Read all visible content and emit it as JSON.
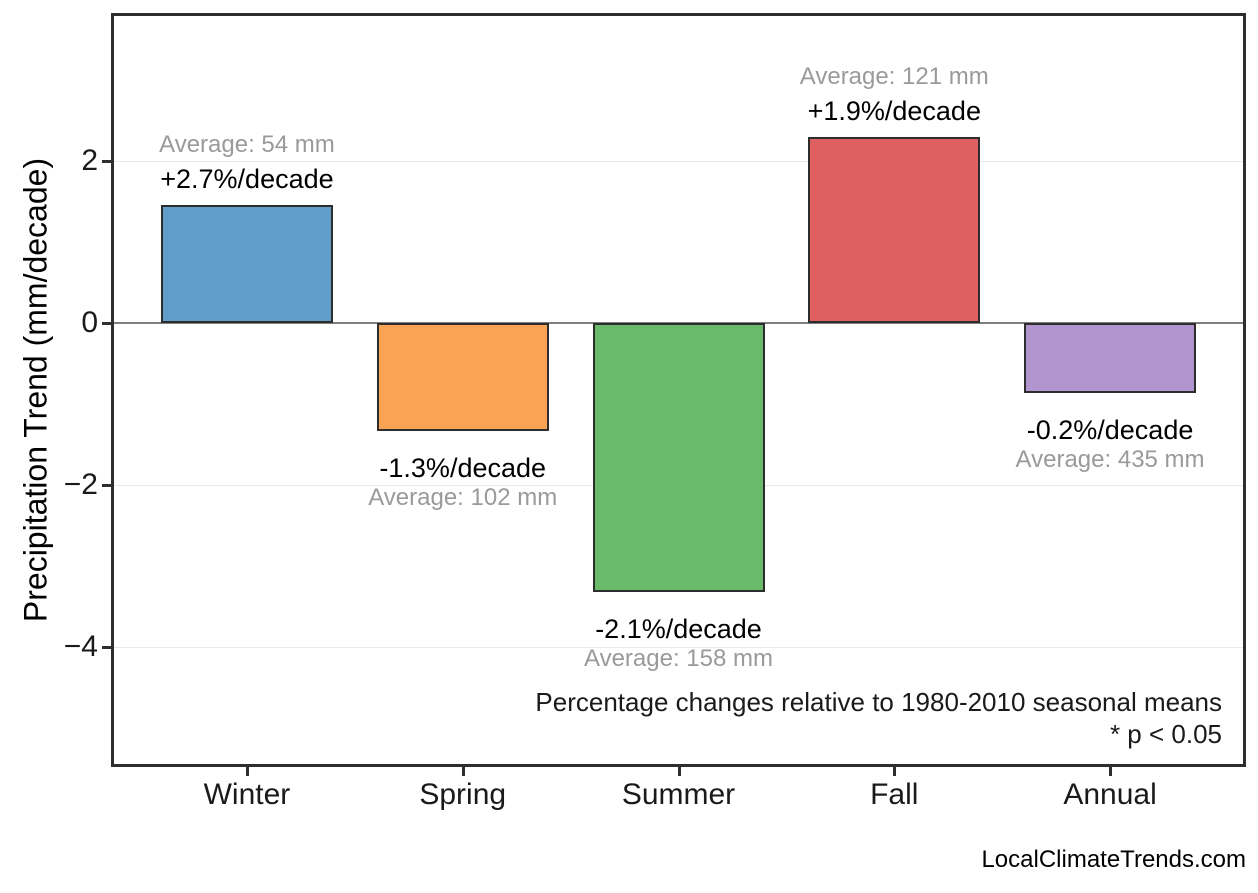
{
  "chart_data": {
    "type": "bar",
    "title": "",
    "categories": [
      "Winter",
      "Spring",
      "Summer",
      "Fall",
      "Annual"
    ],
    "values": [
      1.46,
      -1.33,
      -3.32,
      2.3,
      -0.87
    ],
    "units": "mm/decade",
    "pct_per_decade": [
      2.7,
      -1.3,
      -2.1,
      1.9,
      -0.2
    ],
    "averages_mm": [
      54,
      102,
      158,
      121,
      435
    ],
    "labels_pct": [
      "+2.7%/decade",
      "-1.3%/decade",
      "-2.1%/decade",
      "+1.9%/decade",
      "-0.2%/decade"
    ],
    "labels_avg": [
      "Average: 54 mm",
      "Average: 102 mm",
      "Average: 158 mm",
      "Average: 121 mm",
      "Average: 435 mm"
    ],
    "bar_colors": [
      "#609dc8",
      "#fba355",
      "#69ba6b",
      "#e06061",
      "#b195cf"
    ],
    "bar_edge_color": "#2d2d2d",
    "xlabel": "",
    "ylabel": "Precipitation Trend (mm/decade)",
    "yticks": [
      2,
      0,
      -2,
      -4
    ],
    "ytick_labels": [
      "2",
      "0",
      "−2",
      "−4"
    ],
    "ylim": [
      -5.5,
      3.85
    ],
    "grid": "horizontal-light",
    "zero_line": true,
    "zero_line_color": "#7f7f7f",
    "legend_position": "none",
    "annotation_line1": "Percentage changes relative to 1980-2010 seasonal means",
    "annotation_line2": "* p < 0.05"
  },
  "footer": {
    "watermark": "LocalClimateTrends.com"
  }
}
